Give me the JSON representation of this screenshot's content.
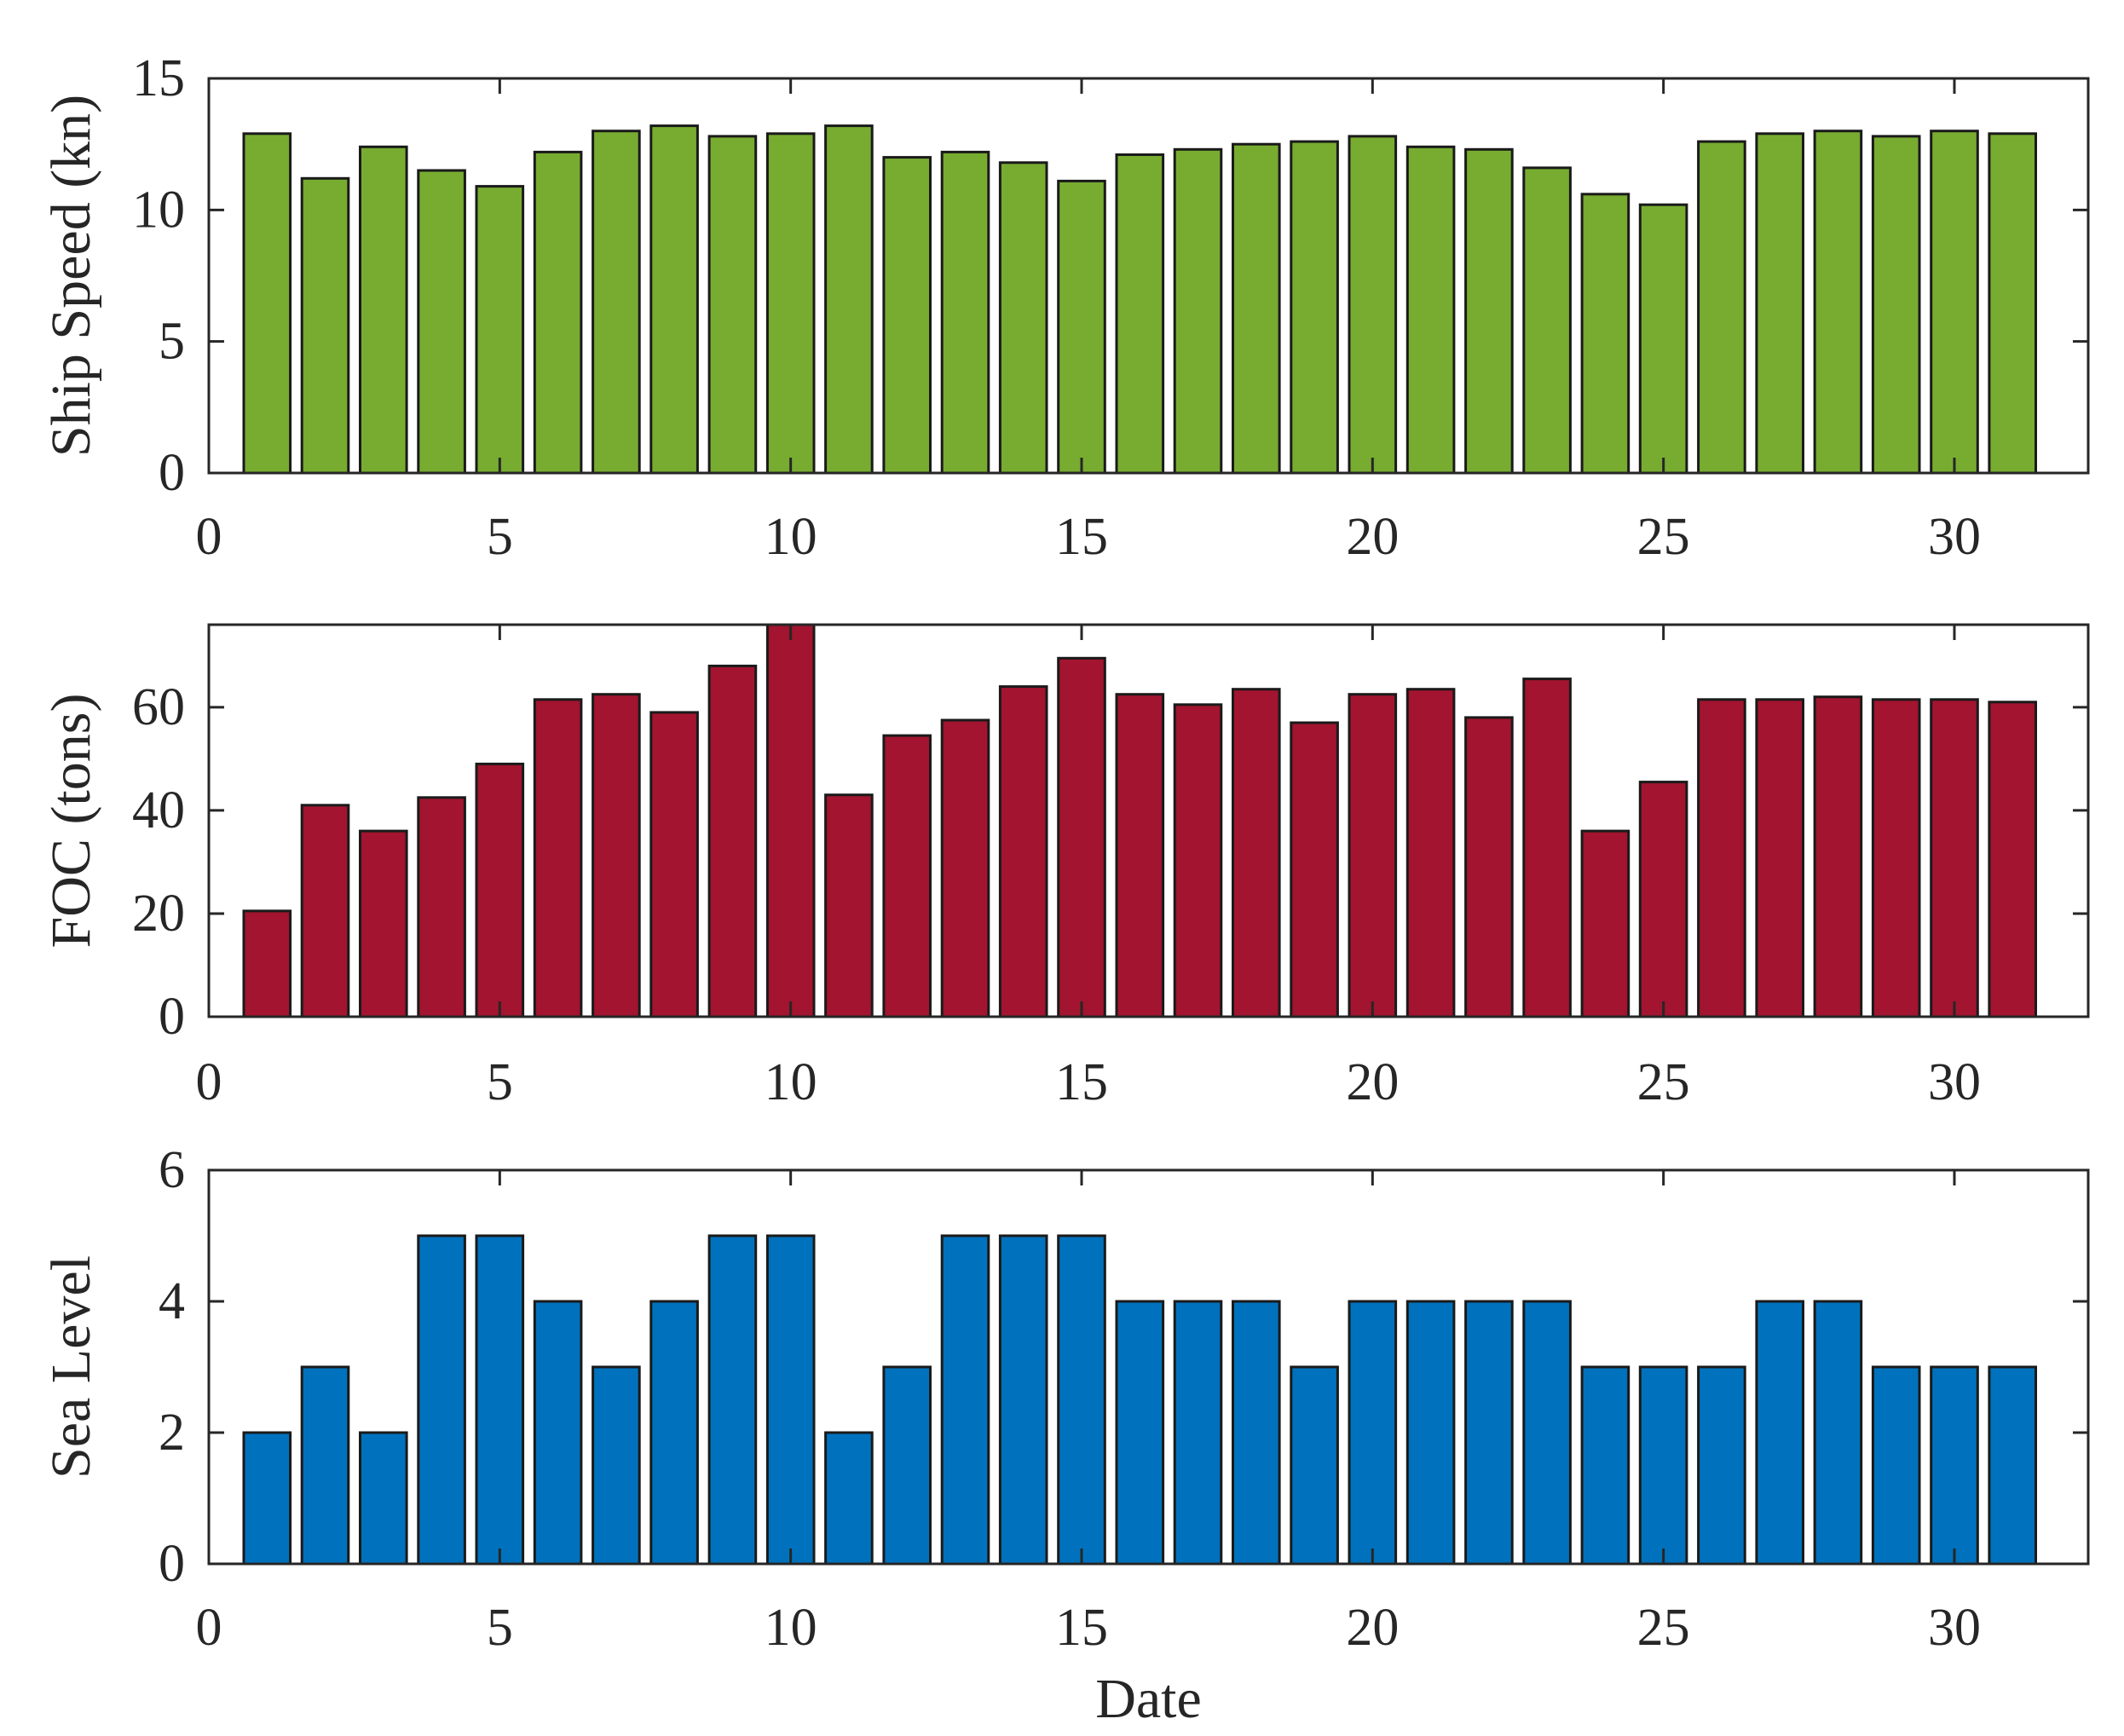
{
  "chart_data": [
    {
      "type": "bar",
      "ylabel": "Ship Speed (kn)",
      "xlabel": "",
      "color": "#77AC30",
      "x": [
        1,
        2,
        3,
        4,
        5,
        6,
        7,
        8,
        9,
        10,
        11,
        12,
        13,
        14,
        15,
        16,
        17,
        18,
        19,
        20,
        21,
        22,
        23,
        24,
        25,
        26,
        27,
        28,
        29,
        30,
        31
      ],
      "values": [
        12.9,
        11.2,
        12.4,
        11.5,
        10.9,
        12.2,
        13.0,
        13.2,
        12.8,
        12.9,
        13.2,
        12.0,
        12.2,
        11.8,
        11.1,
        12.1,
        12.3,
        12.5,
        12.6,
        12.8,
        12.4,
        12.3,
        11.6,
        10.6,
        10.2,
        12.6,
        12.9,
        13.0,
        12.8,
        13.0,
        12.9
      ],
      "xlim": [
        0,
        32.3
      ],
      "ylim": [
        0,
        15
      ],
      "xticks": [
        "0",
        "5",
        "10",
        "15",
        "20",
        "25",
        "30"
      ],
      "yticks": [
        "0",
        "5",
        "10",
        "15"
      ],
      "grid": false
    },
    {
      "type": "bar",
      "ylabel": "FOC (tons)",
      "xlabel": "",
      "color": "#A2142F",
      "x": [
        1,
        2,
        3,
        4,
        5,
        6,
        7,
        8,
        9,
        10,
        11,
        12,
        13,
        14,
        15,
        16,
        17,
        18,
        19,
        20,
        21,
        22,
        23,
        24,
        25,
        26,
        27,
        28,
        29,
        30,
        31
      ],
      "values": [
        20.5,
        41.0,
        36.0,
        42.5,
        49.0,
        61.5,
        62.5,
        59.0,
        68.0,
        76.0,
        43.0,
        54.5,
        57.5,
        64.0,
        69.5,
        62.5,
        60.5,
        63.5,
        57.0,
        62.5,
        63.5,
        58.0,
        65.5,
        36.0,
        45.5,
        61.5,
        61.5,
        62.0,
        61.5,
        61.5,
        61.0
      ],
      "xlim": [
        0,
        32.3
      ],
      "ylim": [
        0,
        76
      ],
      "xticks": [
        "0",
        "5",
        "10",
        "15",
        "20",
        "25",
        "30"
      ],
      "yticks": [
        "0",
        "20",
        "40",
        "60"
      ],
      "grid": false
    },
    {
      "type": "bar",
      "ylabel": "Sea Level",
      "xlabel": "Date",
      "color": "#0072BD",
      "x": [
        1,
        2,
        3,
        4,
        5,
        6,
        7,
        8,
        9,
        10,
        11,
        12,
        13,
        14,
        15,
        16,
        17,
        18,
        19,
        20,
        21,
        22,
        23,
        24,
        25,
        26,
        27,
        28,
        29,
        30,
        31
      ],
      "values": [
        2,
        3,
        2,
        5,
        5,
        4,
        3,
        4,
        5,
        5,
        2,
        3,
        5,
        5,
        5,
        4,
        4,
        4,
        3,
        4,
        4,
        4,
        4,
        3,
        3,
        3,
        4,
        4,
        3,
        3,
        3
      ],
      "xlim": [
        0,
        32.3
      ],
      "ylim": [
        0,
        6
      ],
      "xticks": [
        "0",
        "5",
        "10",
        "15",
        "20",
        "25",
        "30"
      ],
      "yticks": [
        "0",
        "2",
        "4",
        "6"
      ],
      "grid": false
    }
  ]
}
